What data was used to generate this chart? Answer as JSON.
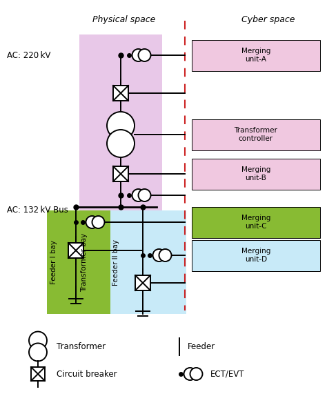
{
  "title_physical": "Physical space",
  "title_cyber": "Cyber space",
  "ac220_label": "AC: 220 kV",
  "ac132_label": "AC: 132 kV Bus",
  "transformer_bay_label": "Transformer bay",
  "feeder1_bay_label": "Feeder I bay",
  "feeder2_bay_label": "Feeder II bay",
  "physical_bg_transformer": "#e8c8e8",
  "physical_bg_feeder1": "#88bb33",
  "physical_bg_feeder2": "#c8eaf8",
  "cyber_merging_A_color": "#f0c8e0",
  "cyber_transformer_color": "#f0c8e0",
  "cyber_merging_B_color": "#f0c8e0",
  "cyber_merging_C_color": "#88bb33",
  "cyber_merging_D_color": "#c8eaf8",
  "dashed_line_color": "#cc2222",
  "line_color": "#000000",
  "fig_w": 4.74,
  "fig_h": 5.87,
  "dpi": 100
}
